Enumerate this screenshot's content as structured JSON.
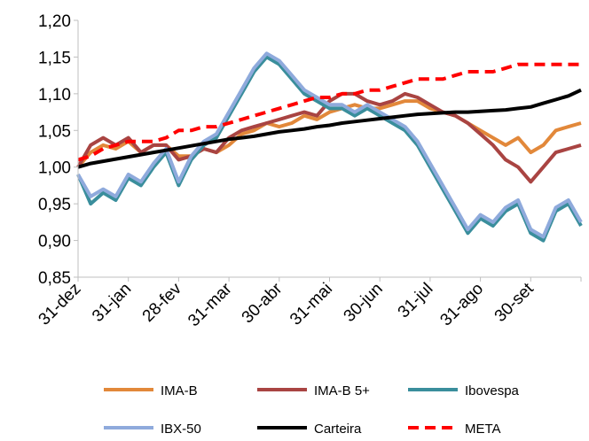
{
  "chart_data": {
    "type": "line",
    "title": "",
    "xlabel": "",
    "ylabel": "",
    "ylim": [
      0.85,
      1.2
    ],
    "yticks": [
      "0,85",
      "0,90",
      "0,95",
      "1,00",
      "1,05",
      "1,10",
      "1,15",
      "1,20"
    ],
    "x_tick_labels": [
      "31-dez",
      "31-jan",
      "28-fev",
      "31-mar",
      "30-abr",
      "31-mai",
      "30-jun",
      "31-jul",
      "31-ago",
      "30-set"
    ],
    "grid": false,
    "legend_position": "bottom",
    "series": [
      {
        "name": "IMA-B",
        "color": "#E2883A",
        "style": "solid",
        "values": [
          1.0,
          1.02,
          1.03,
          1.025,
          1.035,
          1.02,
          1.03,
          1.03,
          1.015,
          1.015,
          1.025,
          1.02,
          1.03,
          1.045,
          1.05,
          1.06,
          1.055,
          1.06,
          1.07,
          1.065,
          1.075,
          1.08,
          1.085,
          1.08,
          1.08,
          1.085,
          1.09,
          1.09,
          1.08,
          1.075,
          1.07,
          1.06,
          1.05,
          1.04,
          1.03,
          1.04,
          1.02,
          1.03,
          1.05,
          1.055,
          1.06
        ]
      },
      {
        "name": "IMA-B 5+",
        "color": "#A94442",
        "style": "solid",
        "values": [
          1.0,
          1.03,
          1.04,
          1.03,
          1.04,
          1.02,
          1.03,
          1.03,
          1.01,
          1.015,
          1.025,
          1.02,
          1.04,
          1.05,
          1.055,
          1.06,
          1.065,
          1.07,
          1.075,
          1.07,
          1.09,
          1.1,
          1.1,
          1.09,
          1.085,
          1.09,
          1.1,
          1.095,
          1.085,
          1.075,
          1.07,
          1.06,
          1.045,
          1.03,
          1.01,
          1.0,
          0.98,
          1.0,
          1.02,
          1.025,
          1.03
        ]
      },
      {
        "name": "Ibovespa",
        "color": "#3A8E9C",
        "style": "solid",
        "values": [
          0.99,
          0.95,
          0.965,
          0.955,
          0.985,
          0.975,
          1.0,
          1.02,
          0.975,
          1.01,
          1.03,
          1.04,
          1.07,
          1.1,
          1.13,
          1.15,
          1.14,
          1.12,
          1.1,
          1.09,
          1.08,
          1.08,
          1.07,
          1.08,
          1.07,
          1.06,
          1.05,
          1.03,
          1.0,
          0.97,
          0.94,
          0.91,
          0.93,
          0.92,
          0.94,
          0.95,
          0.91,
          0.9,
          0.94,
          0.95,
          0.92
        ]
      },
      {
        "name": "IBX-50",
        "color": "#8FAADC",
        "style": "solid",
        "values": [
          0.99,
          0.96,
          0.97,
          0.96,
          0.99,
          0.98,
          1.005,
          1.025,
          0.98,
          1.015,
          1.035,
          1.045,
          1.075,
          1.105,
          1.135,
          1.155,
          1.145,
          1.125,
          1.105,
          1.095,
          1.085,
          1.085,
          1.075,
          1.085,
          1.075,
          1.065,
          1.055,
          1.035,
          1.005,
          0.975,
          0.945,
          0.915,
          0.935,
          0.925,
          0.945,
          0.955,
          0.915,
          0.905,
          0.945,
          0.955,
          0.925
        ]
      },
      {
        "name": "Carteira",
        "color": "#000000",
        "style": "solid",
        "values": [
          1.0,
          1.005,
          1.008,
          1.011,
          1.014,
          1.017,
          1.02,
          1.023,
          1.026,
          1.029,
          1.032,
          1.035,
          1.038,
          1.04,
          1.042,
          1.045,
          1.048,
          1.05,
          1.052,
          1.055,
          1.057,
          1.06,
          1.062,
          1.064,
          1.066,
          1.068,
          1.07,
          1.072,
          1.073,
          1.074,
          1.075,
          1.075,
          1.076,
          1.077,
          1.078,
          1.08,
          1.082,
          1.087,
          1.092,
          1.097,
          1.105
        ]
      },
      {
        "name": "META",
        "color": "#FF0000",
        "style": "dashed",
        "values": [
          1.01,
          1.015,
          1.025,
          1.03,
          1.035,
          1.035,
          1.035,
          1.04,
          1.05,
          1.05,
          1.055,
          1.055,
          1.06,
          1.065,
          1.07,
          1.075,
          1.08,
          1.085,
          1.09,
          1.095,
          1.095,
          1.1,
          1.1,
          1.105,
          1.105,
          1.11,
          1.115,
          1.12,
          1.12,
          1.12,
          1.125,
          1.13,
          1.13,
          1.13,
          1.135,
          1.14,
          1.14,
          1.14,
          1.14,
          1.14,
          1.14
        ]
      }
    ]
  }
}
